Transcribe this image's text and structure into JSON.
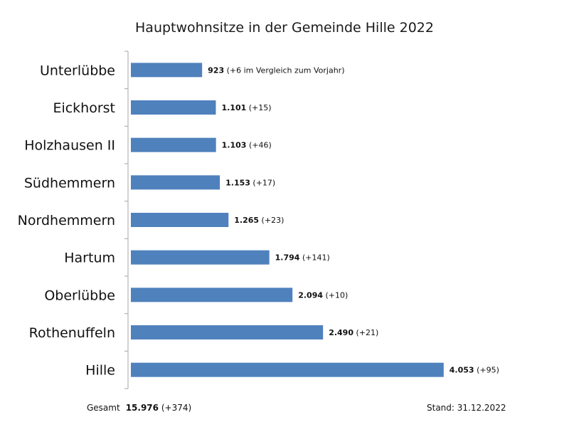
{
  "chart_data": {
    "type": "bar",
    "orientation": "horizontal",
    "title": "Hauptwohnsitze in der Gemeinde Hille 2022",
    "categories": [
      "Unterlübbe",
      "Eickhorst",
      "Holzhausen II",
      "Südhemmern",
      "Nordhemmern",
      "Hartum",
      "Oberlübbe",
      "Rothenuffeln",
      "Hille"
    ],
    "values": [
      923,
      1101,
      1103,
      1153,
      1265,
      1794,
      2094,
      2490,
      4053
    ],
    "value_labels": [
      "923",
      "1.101",
      "1.103",
      "1.153",
      "1.265",
      "1.794",
      "2.094",
      "2.490",
      "4.053"
    ],
    "delta_labels": [
      "(+6 im Vergleich zum Vorjahr)",
      "(+15)",
      "(+46)",
      "(+17)",
      "(+23)",
      "(+141)",
      "(+10)",
      "(+21)",
      "(+95)"
    ],
    "bar_color": "#4f81bd",
    "xlim": [
      0,
      4700
    ],
    "grid": false,
    "legend": "none"
  },
  "footer": {
    "total_label": "Gesamt",
    "total_value": "15.976",
    "total_delta": "(+374)",
    "stand": "Stand: 31.12.2022"
  }
}
